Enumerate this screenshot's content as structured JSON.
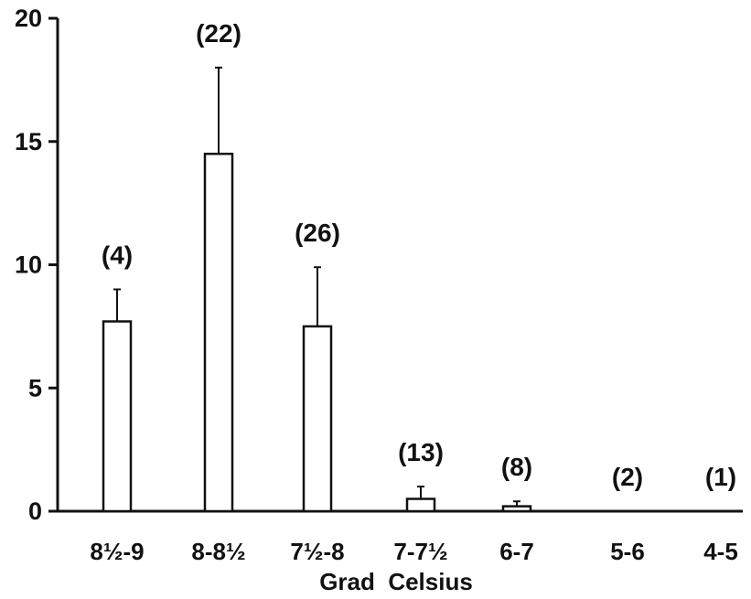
{
  "chart_data": {
    "type": "bar",
    "xlabel": "Grad  Celsius",
    "ylabel": "",
    "title": "",
    "ylim": [
      0,
      20
    ],
    "yticks": [
      "0",
      "5",
      "10",
      "15",
      "20"
    ],
    "categories": [
      "8½-9",
      "8-8½",
      "7½-8",
      "7-7½",
      "6-7",
      "5-6",
      "4-5"
    ],
    "values": [
      7.7,
      14.5,
      7.5,
      0.5,
      0.2,
      0,
      0
    ],
    "error_upper": [
      9.0,
      18.0,
      9.9,
      1.0,
      0.4,
      null,
      null
    ],
    "counts": [
      "(4)",
      "(22)",
      "(26)",
      "(13)",
      "(8)",
      "(2)",
      "(1)"
    ],
    "grid": false
  }
}
